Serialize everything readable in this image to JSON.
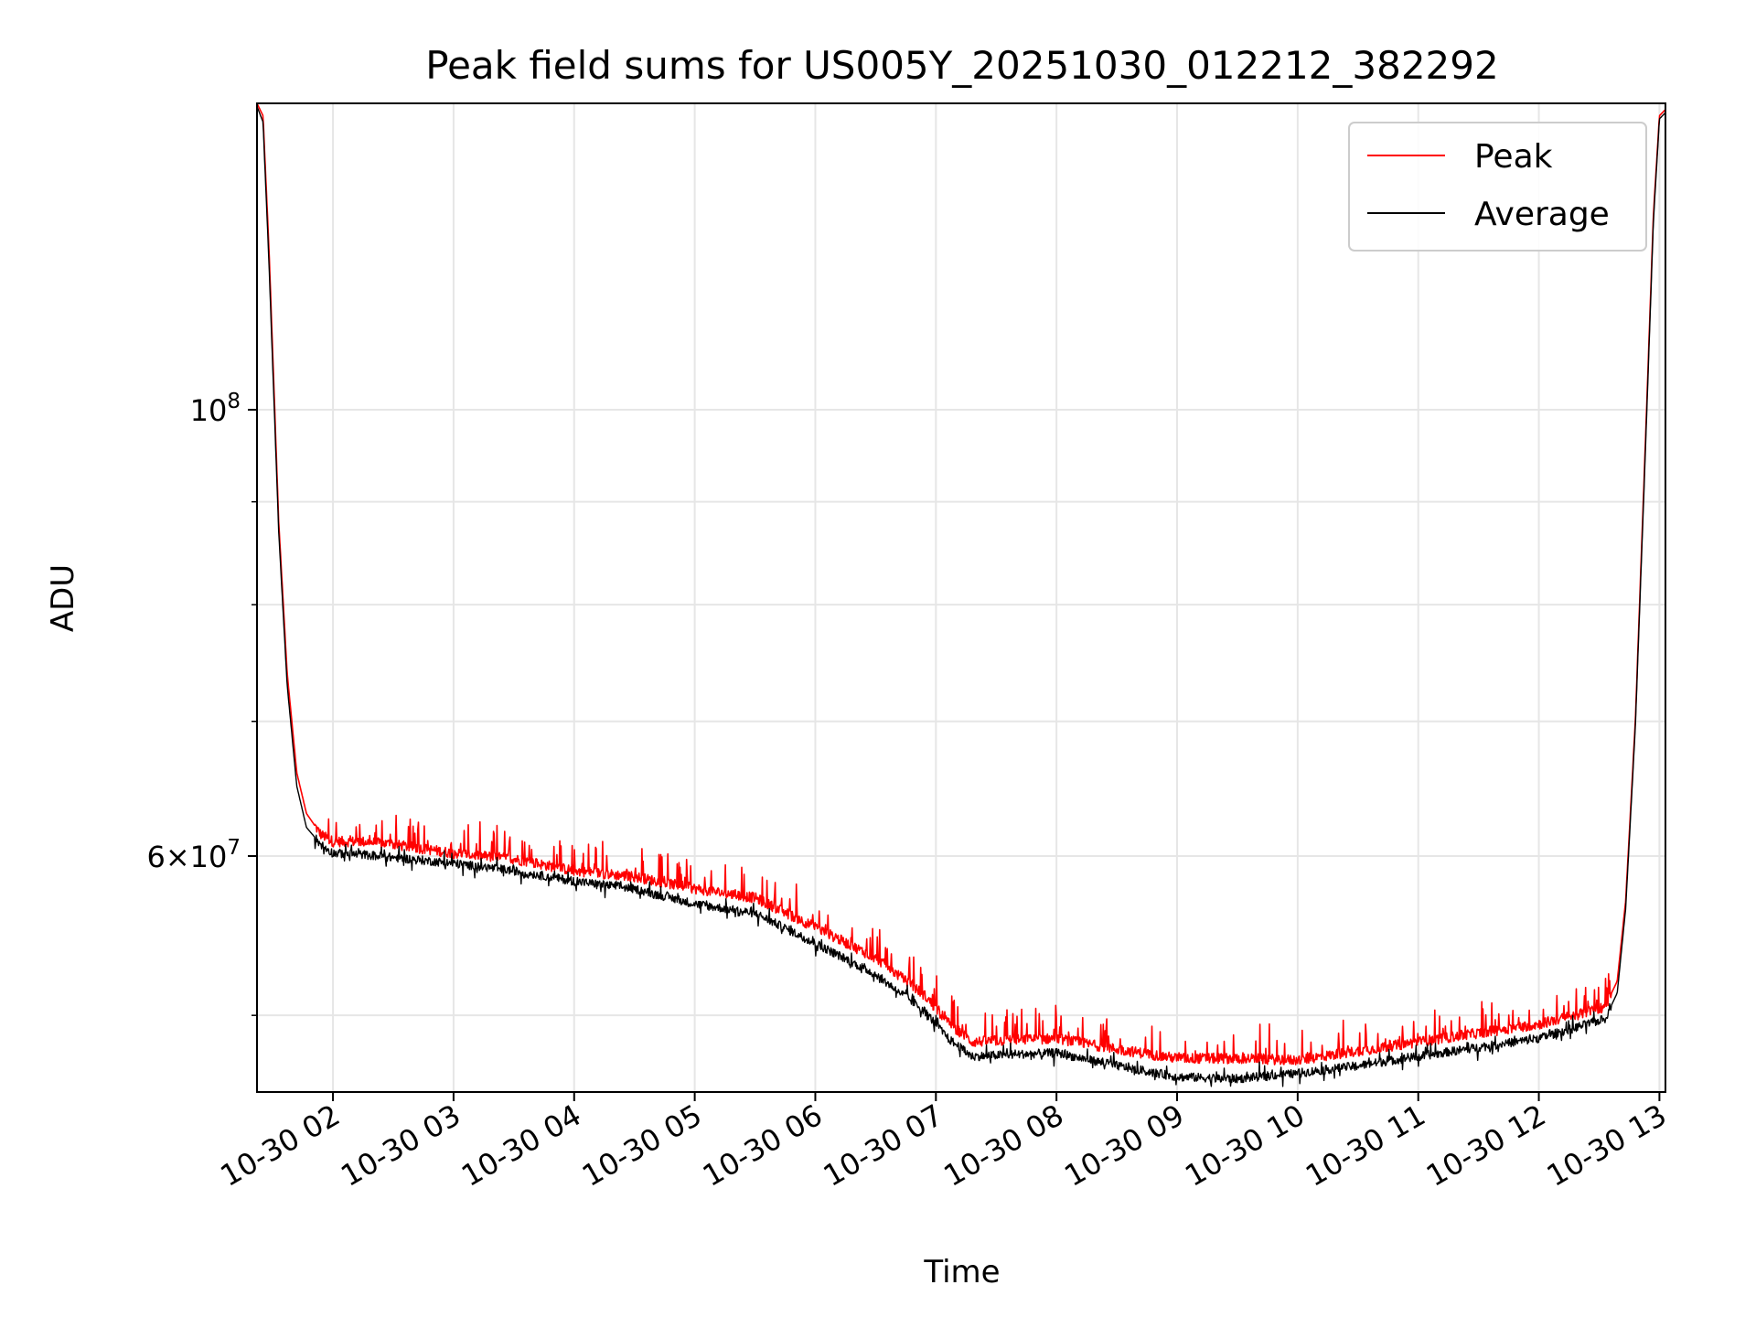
{
  "chart_data": {
    "type": "line",
    "title": "Peak field sums for US005Y_20251030_012212_382292",
    "xlabel": "Time",
    "ylabel": "ADU",
    "yscale": "log",
    "ylim": [
      45800000,
      142000000
    ],
    "xlim": [
      1.37,
      13.05
    ],
    "grid": true,
    "legend_position": "top-right",
    "x_ticks": [
      2,
      3,
      4,
      5,
      6,
      7,
      8,
      9,
      10,
      11,
      12,
      13
    ],
    "x_tick_labels": [
      "10-30 02",
      "10-30 03",
      "10-30 04",
      "10-30 05",
      "10-30 06",
      "10-30 07",
      "10-30 08",
      "10-30 09",
      "10-30 10",
      "10-30 11",
      "10-30 12",
      "10-30 13"
    ],
    "y_major_ticks": [
      {
        "value": 100000000,
        "base": "10",
        "exp": "8"
      },
      {
        "value": 60000000,
        "mant": "6",
        "base": "10",
        "exp": "7"
      }
    ],
    "y_minor_ticks": [
      50000000,
      70000000,
      80000000,
      90000000
    ],
    "series": [
      {
        "name": "Peak",
        "color": "#ff0000",
        "x": [
          1.37,
          1.42,
          1.47,
          1.55,
          1.62,
          1.7,
          1.78,
          1.9,
          2.0,
          2.25,
          2.5,
          3.0,
          3.5,
          4.0,
          4.5,
          5.0,
          5.5,
          6.0,
          6.5,
          6.9,
          7.1,
          7.3,
          7.6,
          8.0,
          8.5,
          9.0,
          9.5,
          10.0,
          10.5,
          11.0,
          11.5,
          12.0,
          12.3,
          12.55,
          12.65,
          12.72,
          12.8,
          12.88,
          12.95,
          13.0,
          13.05
        ],
        "values": [
          142000000,
          140000000,
          120000000,
          88000000,
          74000000,
          66000000,
          63000000,
          61500000,
          61000000,
          61000000,
          60800000,
          60200000,
          59800000,
          59000000,
          58600000,
          57800000,
          57200000,
          55300000,
          53400000,
          51200000,
          49600000,
          48500000,
          48600000,
          48700000,
          48100000,
          47600000,
          47600000,
          47500000,
          48000000,
          48500000,
          49000000,
          49500000,
          50000000,
          50500000,
          52000000,
          57000000,
          70000000,
          95000000,
          125000000,
          140000000,
          141000000
        ],
        "noise_amplitude": 0.012,
        "spike_amplitude": 0.035
      },
      {
        "name": "Average",
        "color": "#000000",
        "x": [
          1.37,
          1.42,
          1.47,
          1.55,
          1.62,
          1.7,
          1.78,
          1.9,
          2.0,
          2.25,
          2.5,
          3.0,
          3.5,
          4.0,
          4.5,
          5.0,
          5.5,
          6.0,
          6.5,
          6.9,
          7.1,
          7.3,
          7.6,
          8.0,
          8.5,
          9.0,
          9.5,
          10.0,
          10.5,
          11.0,
          11.5,
          12.0,
          12.3,
          12.55,
          12.65,
          12.72,
          12.8,
          12.88,
          12.95,
          13.0,
          13.05
        ],
        "values": [
          141500000,
          139000000,
          118000000,
          87000000,
          73000000,
          65000000,
          62000000,
          60800000,
          60200000,
          60100000,
          59900000,
          59500000,
          59000000,
          58300000,
          57800000,
          56800000,
          56200000,
          54300000,
          52400000,
          50300000,
          48700000,
          47700000,
          47800000,
          47900000,
          47200000,
          46600000,
          46500000,
          46800000,
          47200000,
          47700000,
          48200000,
          48700000,
          49300000,
          49800000,
          51300000,
          56500000,
          69500000,
          94000000,
          124000000,
          139500000,
          140500000
        ],
        "noise_amplitude": 0.01,
        "spike_amplitude": 0.012
      }
    ]
  }
}
